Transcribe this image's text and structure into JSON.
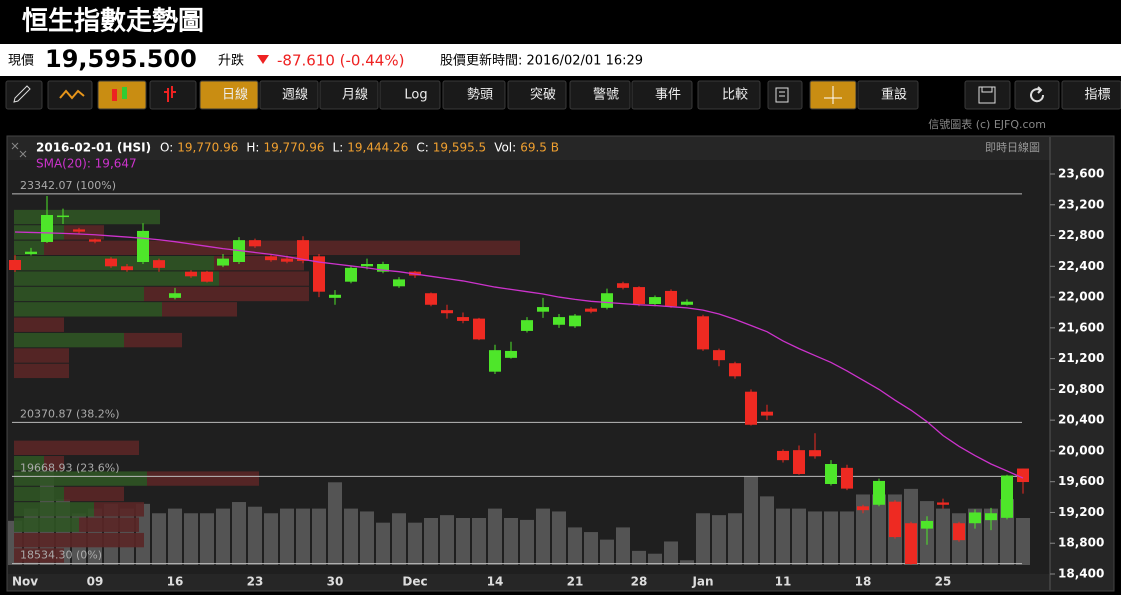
{
  "header": {
    "title": "恒生指數走勢圖",
    "price_label": "現價",
    "price": "19,595.500",
    "change_label": "升跌",
    "change": "-87.610 (-0.44%)",
    "updated": "股價更新時間: 2016/02/01 16:29",
    "credit": "信號圖表 (c) EJFQ.com"
  },
  "toolbar": [
    "日線",
    "週線",
    "月線",
    "Log",
    "勢頭",
    "突破",
    "警號",
    "事件",
    "比較",
    "重設",
    "指標"
  ],
  "chart_data": {
    "type": "candlestick",
    "info": {
      "date": "2016-02-01 (HSI)",
      "fields": [
        [
          "O:",
          "19,770.96"
        ],
        [
          "H:",
          "19,770.96"
        ],
        [
          "L:",
          "19,444.26"
        ],
        [
          "C:",
          "19,595.5"
        ],
        [
          "Vol:",
          "69.5 B"
        ]
      ],
      "chart_kind": "即時日線圖"
    },
    "categories": [
      "Nov",
      null,
      null,
      null,
      null,
      "09",
      null,
      null,
      null,
      null,
      "16",
      null,
      null,
      null,
      null,
      "23",
      null,
      null,
      null,
      null,
      "30",
      null,
      null,
      null,
      null,
      "Dec",
      null,
      null,
      null,
      null,
      "14",
      null,
      null,
      null,
      null,
      "21",
      null,
      null,
      null,
      "28",
      null,
      null,
      null,
      "Jan",
      null,
      null,
      null,
      null,
      "11",
      null,
      null,
      null,
      null,
      "18",
      null,
      null,
      null,
      null,
      "25",
      null,
      null,
      null,
      null,
      null
    ],
    "open": [
      22482,
      22560,
      22716,
      23040,
      22880,
      22750,
      22500,
      22400,
      22456,
      22480,
      21990,
      22330,
      22330,
      22410,
      22456,
      22740,
      22530,
      22500,
      22740,
      22530,
      21990,
      22200,
      22400,
      22330,
      22140,
      22330,
      22050,
      21830,
      21740,
      21720,
      21030,
      21210,
      21560,
      21810,
      21640,
      21620,
      21850,
      21860,
      22180,
      22130,
      21910,
      22080,
      21900,
      21750,
      21310,
      21140,
      20770,
      20510,
      20000,
      20010,
      20010,
      19570,
      19780,
      19280,
      19300,
      19340,
      19060,
      18990,
      19330,
      19060,
      19060,
      19100,
      19130,
      19770.96
    ],
    "high": [
      22547,
      22640,
      23314,
      23150,
      22900,
      22760,
      22520,
      22430,
      22960,
      22500,
      22120,
      22350,
      22340,
      22560,
      22780,
      22760,
      22560,
      22540,
      22790,
      22560,
      22090,
      22400,
      22500,
      22460,
      22260,
      22340,
      22060,
      21900,
      21800,
      21730,
      21380,
      21420,
      21740,
      21990,
      21780,
      21780,
      21870,
      22110,
      22200,
      22140,
      22020,
      22100,
      21970,
      21770,
      21330,
      21160,
      20800,
      20600,
      20020,
      20070,
      20230,
      19880,
      19820,
      19300,
      19640,
      19360,
      19080,
      19150,
      19380,
      19080,
      19240,
      19260,
      19690,
      19770.96
    ],
    "low": [
      22326,
      22540,
      22703,
      22950,
      22820,
      22700,
      22380,
      22330,
      22430,
      22330,
      21970,
      22250,
      22190,
      22390,
      22430,
      22640,
      22460,
      22440,
      22440,
      22000,
      21900,
      22180,
      22360,
      22310,
      22120,
      22250,
      21880,
      21720,
      21660,
      21440,
      21000,
      21200,
      21540,
      21730,
      21600,
      21600,
      21790,
      21840,
      22100,
      21880,
      21880,
      21860,
      21890,
      21300,
      21100,
      20940,
      20330,
      20400,
      19850,
      19690,
      19900,
      19550,
      19490,
      19190,
      19280,
      18860,
      18520,
      18780,
      19250,
      18820,
      18990,
      18970,
      19110,
      19444.26
    ],
    "close": [
      22352,
      22590,
      23067,
      23060,
      22850,
      22720,
      22400,
      22350,
      22860,
      22380,
      22050,
      22270,
      22200,
      22500,
      22740,
      22660,
      22480,
      22460,
      22470,
      22070,
      22030,
      22380,
      22430,
      22430,
      22230,
      22280,
      21900,
      21790,
      21690,
      21450,
      21310,
      21300,
      21700,
      21870,
      21740,
      21760,
      21810,
      22050,
      22120,
      21910,
      22000,
      21880,
      21940,
      21320,
      21180,
      20970,
      20340,
      20460,
      19880,
      19700,
      19930,
      19830,
      19510,
      19230,
      19610,
      18880,
      18530,
      19090,
      19300,
      18840,
      19200,
      19190,
      19680,
      19595.5
    ],
    "volume": [
      65.3,
      83.4,
      139,
      97.3,
      76.5,
      83.4,
      90.4,
      83.4,
      90.4,
      76.5,
      83.4,
      76.5,
      76.5,
      83.4,
      93.1,
      86.2,
      76.5,
      83.4,
      83.4,
      83.4,
      122.3,
      83.4,
      79.2,
      62.6,
      76.5,
      62.6,
      69.5,
      73.7,
      69.5,
      69.5,
      83.4,
      69.5,
      66.7,
      83.4,
      79.2,
      55.6,
      48.7,
      37.5,
      55.6,
      20.9,
      16.7,
      34.8,
      7,
      76.5,
      73.7,
      76.5,
      130.7,
      101.5,
      83.4,
      83.4,
      79.2,
      79.2,
      79.2,
      104.3,
      104.3,
      104.3,
      112.6,
      94.5,
      83.4,
      76.5,
      83.4,
      83.4,
      97.3,
      69.5
    ],
    "up_color": "#4ee62a",
    "down_color": "#ee2a22",
    "volume_color": "#5e5e5e",
    "sma": {
      "label": "SMA(20): 19,647",
      "color": "#cc33cc",
      "values": [
        22846,
        22840,
        22835,
        22828,
        22820,
        22810,
        22795,
        22780,
        22765,
        22745,
        22720,
        22690,
        22660,
        22630,
        22605,
        22580,
        22555,
        22525,
        22490,
        22455,
        22430,
        22405,
        22380,
        22350,
        22330,
        22300,
        22270,
        22240,
        22210,
        22170,
        22130,
        22100,
        22070,
        22040,
        22000,
        21970,
        21945,
        21930,
        21915,
        21900,
        21890,
        21875,
        21860,
        21830,
        21780,
        21710,
        21630,
        21550,
        21430,
        21330,
        21240,
        21150,
        21040,
        20920,
        20800,
        20660,
        20530,
        20380,
        20200,
        20060,
        19940,
        19830,
        19740,
        19647
      ]
    },
    "profile": {
      "bins": [
        18534,
        18734,
        18934,
        19134,
        19334,
        19534,
        19734,
        19934,
        20134,
        20334,
        20534,
        20734,
        20934,
        21134,
        21334,
        21534,
        21734,
        21934,
        22134,
        22334,
        22534,
        22734,
        22934,
        23134
      ],
      "up": [
        0,
        0,
        65,
        80,
        50,
        133,
        30,
        0,
        0,
        0,
        0,
        0,
        0,
        0,
        110,
        0,
        148,
        130,
        205,
        200,
        30,
        50,
        146
      ],
      "down": [
        50,
        130,
        60,
        50,
        60,
        112,
        20,
        125,
        0,
        0,
        0,
        0,
        55,
        55,
        58,
        50,
        75,
        165,
        90,
        90,
        476,
        40,
        0
      ],
      "up_color": "#2f5424",
      "down_color": "#5a2626"
    },
    "levels": [
      {
        "value": 23342.07,
        "label": "23342.07 (100%)"
      },
      {
        "value": 20370.87,
        "label": "20370.87 (38.2%)"
      },
      {
        "value": 19668.93,
        "label": "19668.93 (23.6%)"
      },
      {
        "value": 18534.3,
        "label": "18534.30 (0%)"
      }
    ],
    "ylim": [
      18400,
      23800
    ],
    "yticks": [
      {
        "value": 18400,
        "label": "18,400"
      },
      {
        "value": 18800,
        "label": "18,800"
      },
      {
        "value": 19200,
        "label": "19,200"
      },
      {
        "value": 19600,
        "label": "19,600"
      },
      {
        "value": 20000,
        "label": "20,000"
      },
      {
        "value": 20400,
        "label": "20,400"
      },
      {
        "value": 20800,
        "label": "20,800"
      },
      {
        "value": 21200,
        "label": "21,200"
      },
      {
        "value": 21600,
        "label": "21,600"
      },
      {
        "value": 22000,
        "label": "22,000"
      },
      {
        "value": 22400,
        "label": "22,400"
      },
      {
        "value": 22800,
        "label": "22,800"
      },
      {
        "value": 23200,
        "label": "23,200"
      },
      {
        "value": 23600,
        "label": "23,600"
      }
    ]
  }
}
